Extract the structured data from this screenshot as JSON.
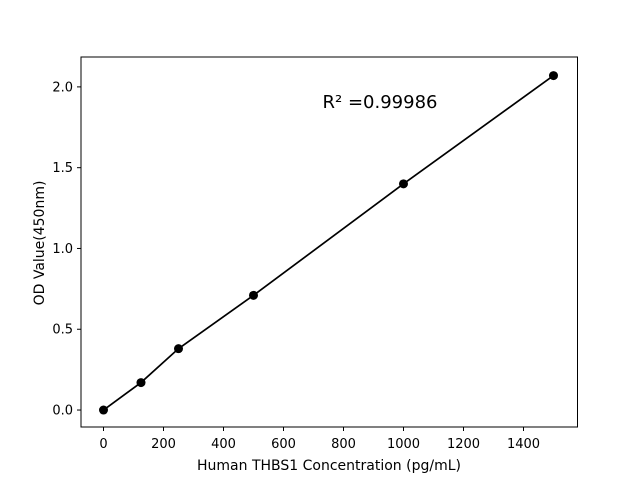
{
  "figure": {
    "background_color": "#ffffff",
    "foreground_color": "#000000"
  },
  "chart_data": {
    "type": "line",
    "markers": true,
    "title": "",
    "xlabel": "Human THBS1 Concentration (pg/mL)",
    "ylabel": "OD Value(450nm)",
    "annotation": "R² =0.99986",
    "r_squared": 0.99986,
    "x": [
      0,
      125,
      250,
      500,
      1000,
      1500
    ],
    "y": [
      0.0,
      0.17,
      0.38,
      0.71,
      1.4,
      2.07
    ],
    "xlim": [
      -75,
      1580
    ],
    "ylim": [
      -0.105,
      2.185
    ],
    "x_ticks": [
      0,
      200,
      400,
      600,
      800,
      1000,
      1200,
      1400
    ],
    "y_ticks": [
      0.0,
      0.5,
      1.0,
      1.5,
      2.0
    ],
    "y_tick_decimals": 1,
    "line_color": "#000000",
    "marker_color": "#000000",
    "grid": false,
    "legend": null
  }
}
